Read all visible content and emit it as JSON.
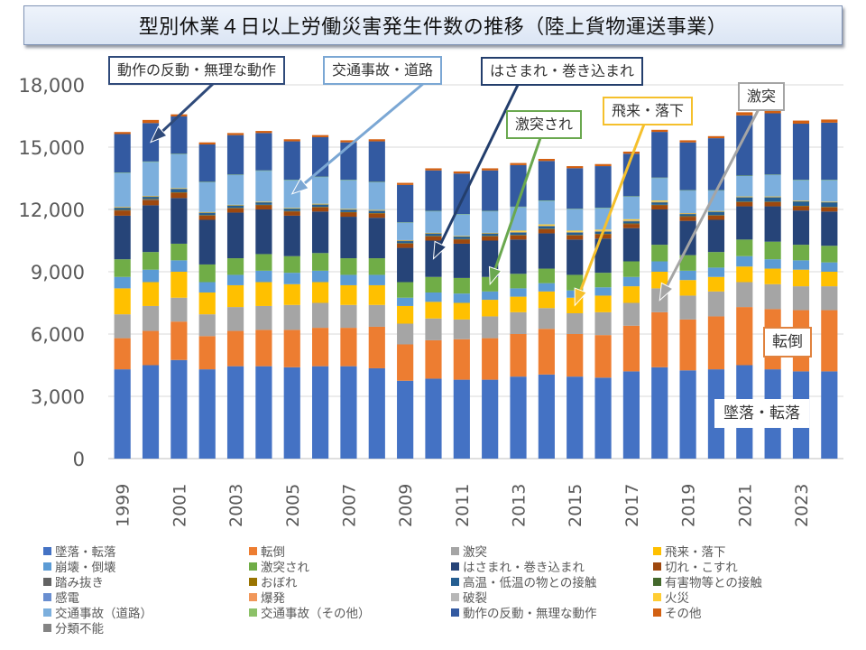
{
  "title": "型別休業４日以上労働災害発生件数の推移（陸上貨物運送事業）",
  "chart_data": {
    "type": "bar",
    "stacked": true,
    "title": "型別休業４日以上労働災害発生件数の推移（陸上貨物運送事業）",
    "xlabel": "",
    "ylabel": "",
    "ylim": [
      0,
      18000
    ],
    "yticks": [
      "0",
      "3,000",
      "6,000",
      "9,000",
      "12,000",
      "15,000",
      "18,000"
    ],
    "ytick_values": [
      0,
      3000,
      6000,
      9000,
      12000,
      15000,
      18000
    ],
    "grid": true,
    "legend_position": "bottom",
    "categories": [
      "1999",
      "2000",
      "2001",
      "2002",
      "2003",
      "2004",
      "2005",
      "2006",
      "2007",
      "2008",
      "2009",
      "2010",
      "2011",
      "2012",
      "2013",
      "2014",
      "2015",
      "2016",
      "2017",
      "2018",
      "2019",
      "2020",
      "2021",
      "2022",
      "2023",
      "2024"
    ],
    "xtick_labels": [
      "1999",
      "2001",
      "2003",
      "2005",
      "2007",
      "2009",
      "2011",
      "2013",
      "2015",
      "2017",
      "2019",
      "2021",
      "2023"
    ],
    "series": [
      {
        "name": "墜落・転落",
        "color": "#4472c4",
        "values": [
          4300,
          4500,
          4750,
          4300,
          4450,
          4450,
          4400,
          4450,
          4450,
          4350,
          3750,
          3850,
          3800,
          3800,
          3950,
          4050,
          3950,
          3900,
          4200,
          4400,
          4250,
          4300,
          4500,
          4300,
          4200,
          4200
        ]
      },
      {
        "name": "転倒",
        "color": "#ed7d31",
        "values": [
          1500,
          1650,
          1850,
          1600,
          1700,
          1750,
          1800,
          1850,
          1850,
          2000,
          1750,
          1850,
          1950,
          2000,
          2050,
          2200,
          2050,
          2050,
          2200,
          2650,
          2450,
          2550,
          2800,
          2900,
          2950,
          2950
        ]
      },
      {
        "name": "激突",
        "color": "#a5a5a5",
        "values": [
          1150,
          1200,
          1150,
          1050,
          1150,
          1150,
          1200,
          1200,
          1100,
          1050,
          1000,
          1050,
          950,
          1050,
          1050,
          1000,
          1000,
          1100,
          1100,
          1150,
          1150,
          1200,
          1200,
          1200,
          1150,
          1150
        ]
      },
      {
        "name": "飛来・落下",
        "color": "#ffc000",
        "values": [
          1250,
          1150,
          1250,
          1050,
          1050,
          1150,
          1000,
          1000,
          950,
          950,
          850,
          800,
          800,
          800,
          750,
          800,
          750,
          800,
          800,
          800,
          750,
          700,
          750,
          750,
          800,
          700
        ]
      },
      {
        "name": "崩壊・倒壊",
        "color": "#5b9bd5",
        "values": [
          550,
          600,
          550,
          500,
          500,
          550,
          550,
          550,
          500,
          500,
          400,
          450,
          450,
          400,
          400,
          400,
          350,
          400,
          450,
          500,
          450,
          450,
          500,
          450,
          450,
          450
        ]
      },
      {
        "name": "激突され",
        "color": "#70ad47",
        "values": [
          850,
          850,
          800,
          850,
          800,
          800,
          800,
          850,
          800,
          800,
          750,
          750,
          750,
          700,
          700,
          700,
          750,
          700,
          750,
          800,
          750,
          750,
          800,
          850,
          750,
          800
        ]
      },
      {
        "name": "はさまれ・巻き込まれ",
        "color": "#264478",
        "values": [
          2100,
          2250,
          2200,
          2150,
          2200,
          2150,
          1950,
          2000,
          2000,
          1950,
          1650,
          1750,
          1650,
          1750,
          1650,
          1700,
          1700,
          1650,
          1600,
          1700,
          1650,
          1550,
          1600,
          1700,
          1650,
          1650
        ]
      },
      {
        "name": "切れ・こすれ",
        "color": "#9e480e",
        "values": [
          250,
          250,
          250,
          200,
          200,
          200,
          200,
          200,
          200,
          200,
          200,
          200,
          200,
          200,
          200,
          200,
          200,
          200,
          200,
          200,
          200,
          200,
          200,
          200,
          200,
          200
        ]
      },
      {
        "name": "踏み抜き",
        "color": "#636363",
        "values": [
          20,
          50,
          20,
          20,
          20,
          20,
          20,
          20,
          20,
          20,
          20,
          20,
          20,
          20,
          20,
          20,
          20,
          20,
          20,
          20,
          20,
          20,
          20,
          20,
          20,
          20
        ]
      },
      {
        "name": "おぼれ",
        "color": "#997300",
        "values": [
          5,
          5,
          5,
          5,
          5,
          5,
          5,
          5,
          5,
          5,
          5,
          5,
          5,
          5,
          5,
          5,
          5,
          5,
          5,
          5,
          5,
          5,
          5,
          5,
          5,
          5
        ]
      },
      {
        "name": "高温・低温の物との接触",
        "color": "#255e91",
        "values": [
          100,
          100,
          150,
          100,
          100,
          100,
          100,
          100,
          100,
          100,
          100,
          100,
          100,
          100,
          100,
          100,
          100,
          100,
          100,
          100,
          100,
          150,
          200,
          200,
          200,
          200
        ]
      },
      {
        "name": "有害物等との接触",
        "color": "#43682b",
        "values": [
          30,
          30,
          30,
          30,
          30,
          30,
          30,
          30,
          30,
          30,
          30,
          30,
          30,
          30,
          30,
          30,
          30,
          30,
          30,
          30,
          30,
          30,
          30,
          30,
          30,
          30
        ]
      },
      {
        "name": "感電",
        "color": "#698ed0",
        "values": [
          5,
          5,
          5,
          5,
          5,
          5,
          5,
          5,
          5,
          5,
          5,
          5,
          5,
          5,
          5,
          5,
          5,
          5,
          5,
          5,
          5,
          5,
          5,
          5,
          5,
          5
        ]
      },
      {
        "name": "爆発",
        "color": "#f1975a",
        "values": [
          5,
          5,
          5,
          5,
          5,
          5,
          5,
          5,
          5,
          5,
          5,
          5,
          5,
          5,
          5,
          5,
          5,
          5,
          5,
          5,
          5,
          5,
          5,
          5,
          5,
          5
        ]
      },
      {
        "name": "破裂",
        "color": "#b7b7b7",
        "values": [
          5,
          5,
          5,
          5,
          5,
          5,
          5,
          5,
          5,
          5,
          5,
          5,
          5,
          5,
          5,
          5,
          5,
          5,
          5,
          5,
          5,
          5,
          5,
          5,
          5,
          5
        ]
      },
      {
        "name": "火災",
        "color": "#ffcd33",
        "values": [
          5,
          5,
          5,
          5,
          5,
          5,
          5,
          5,
          5,
          5,
          5,
          5,
          5,
          5,
          60,
          60,
          60,
          60,
          60,
          60,
          5,
          5,
          5,
          5,
          5,
          5
        ]
      },
      {
        "name": "交通事故（道路）",
        "color": "#7cafdd",
        "values": [
          1650,
          1650,
          1650,
          1450,
          1450,
          1500,
          1350,
          1300,
          1400,
          1350,
          850,
          1050,
          1050,
          1050,
          1150,
          1150,
          1050,
          1050,
          1100,
          1100,
          1100,
          1000,
          1000,
          1050,
          1000,
          1050
        ]
      },
      {
        "name": "交通事故（その他）",
        "color": "#8cc168",
        "values": [
          5,
          5,
          5,
          5,
          5,
          5,
          5,
          5,
          5,
          5,
          5,
          5,
          5,
          5,
          5,
          5,
          5,
          5,
          5,
          5,
          5,
          5,
          5,
          5,
          5,
          5
        ]
      },
      {
        "name": "動作の反動・無理な動作",
        "color": "#335aa1",
        "values": [
          1850,
          1850,
          1800,
          1800,
          1900,
          1800,
          1850,
          1900,
          1800,
          1950,
          1800,
          1950,
          1950,
          1950,
          2000,
          1900,
          1950,
          2000,
          2050,
          2200,
          2300,
          2500,
          2900,
          2950,
          2700,
          2750
        ]
      },
      {
        "name": "その他",
        "color": "#d26012",
        "values": [
          100,
          150,
          100,
          100,
          100,
          100,
          100,
          100,
          100,
          100,
          100,
          100,
          100,
          100,
          100,
          100,
          100,
          100,
          100,
          100,
          100,
          100,
          150,
          150,
          150,
          150
        ]
      },
      {
        "name": "分類不能",
        "color": "#848484",
        "values": [
          0,
          0,
          0,
          0,
          0,
          0,
          0,
          0,
          0,
          0,
          0,
          0,
          0,
          0,
          0,
          0,
          0,
          0,
          0,
          0,
          0,
          0,
          0,
          0,
          0,
          0
        ]
      }
    ],
    "annotations": [
      {
        "text": "動作の反動・無理な動作",
        "target_year": "2000",
        "target_series": "動作の反動・無理な動作",
        "border_color": "#2f4a7a"
      },
      {
        "text": "交通事故・道路",
        "target_year": "2005",
        "target_series": "交通事故（道路）",
        "border_color": "#7ba7d4"
      },
      {
        "text": "はさまれ・巻き込まれ",
        "target_year": "2010",
        "target_series": "はさまれ・巻き込まれ",
        "border_color": "#233e6c"
      },
      {
        "text": "激突され",
        "target_year": "2012",
        "target_series": "激突され",
        "border_color": "#6aa84f"
      },
      {
        "text": "飛来・落下",
        "target_year": "2015",
        "target_series": "飛来・落下",
        "border_color": "#f5c02c"
      },
      {
        "text": "激突",
        "target_year": "2018",
        "target_series": "激突",
        "border_color": "#a5a5a5"
      },
      {
        "text": "転倒",
        "target_year": "",
        "target_series": "転倒",
        "border_color": "#e0823e"
      },
      {
        "text": "墜落・転落",
        "target_year": "",
        "target_series": "墜落・転落",
        "border_color": "#ffffff"
      }
    ]
  },
  "legend": {
    "columns": [
      [
        "墜落・転落",
        "崩壊・倒壊",
        "踏み抜き",
        "感電",
        "交通事故（道路）",
        "分類不能"
      ],
      [
        "転倒",
        "激突され",
        "おぼれ",
        "爆発",
        "交通事故（その他）"
      ],
      [
        "激突",
        "はさまれ・巻き込まれ",
        "高温・低温の物との接触",
        "破裂",
        "動作の反動・無理な動作"
      ],
      [
        "飛来・落下",
        "切れ・こすれ",
        "有害物等との接触",
        "火災",
        "その他"
      ]
    ]
  }
}
